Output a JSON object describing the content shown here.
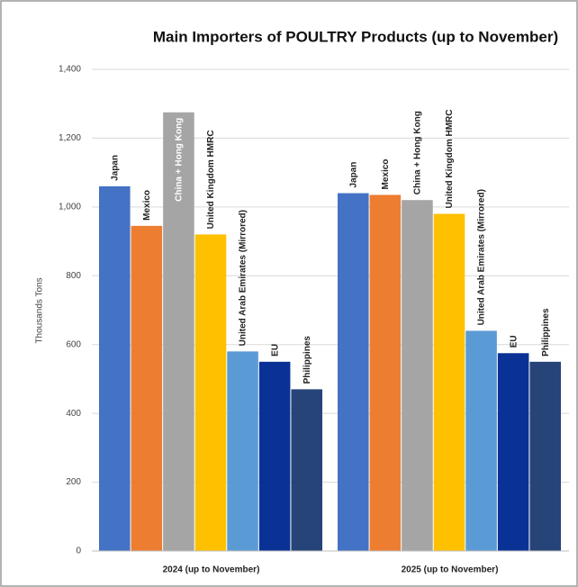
{
  "chart_data": {
    "type": "bar",
    "title": "Main Importers of POULTRY Products (up to November)",
    "y_label": "Thousands Tons",
    "categories": [
      "2024 (up to November)",
      "2025 (up to November)"
    ],
    "series": [
      {
        "name": "Japan",
        "color": "#4472c4",
        "values": [
          1060,
          1040
        ]
      },
      {
        "name": "Mexico",
        "color": "#ed7d31",
        "values": [
          945,
          1035
        ]
      },
      {
        "name": "China + Hong Kong",
        "color": "#a5a5a5",
        "values": [
          1275,
          1020
        ]
      },
      {
        "name": "United Kingdom HMRC",
        "color": "#ffc000",
        "values": [
          920,
          980
        ]
      },
      {
        "name": "United Arab Emirates (Mirrored)",
        "color": "#5b9bd5",
        "values": [
          580,
          640
        ]
      },
      {
        "name": "EU",
        "color": "#0a3296",
        "values": [
          550,
          575
        ]
      },
      {
        "name": "Philippines",
        "color": "#264478",
        "values": [
          470,
          550
        ]
      }
    ],
    "ylim": [
      0,
      1400
    ],
    "yticks": [
      0,
      200,
      400,
      600,
      800,
      {
        "value": 1000,
        "label": "1,000"
      },
      {
        "value": 1200,
        "label": "1,200"
      },
      {
        "value": 1400,
        "label": "1,400"
      }
    ],
    "grid": true
  }
}
